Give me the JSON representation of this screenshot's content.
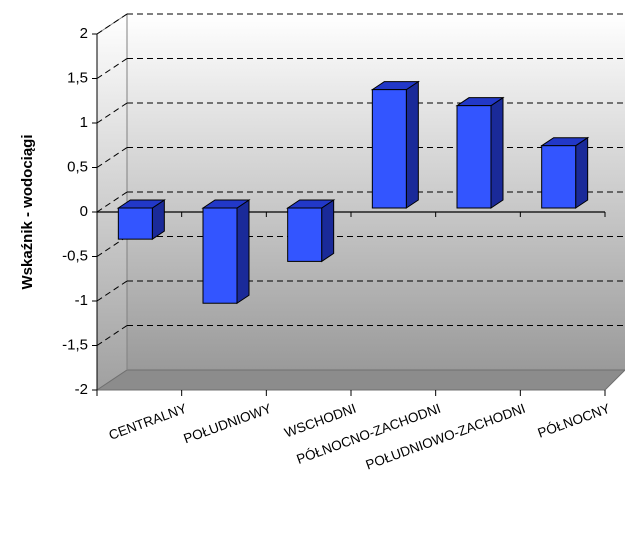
{
  "chart_data": {
    "type": "bar",
    "ylabel": "Wskaźnik - wodociągi",
    "xlabel": "",
    "categories": [
      "CENTRALNY",
      "POŁUDNIOWY",
      "WSCHODNI",
      "PÓŁNOCNO-ZACHODNI",
      "POŁUDNIOWO-ZACHODNI",
      "PÓŁNOCNY"
    ],
    "values": [
      -0.35,
      -1.07,
      -0.6,
      1.33,
      1.15,
      0.7
    ],
    "ylim": [
      -2,
      2
    ],
    "yticks": [
      "-2",
      "-1,5",
      "-1",
      "-0,5",
      "0",
      "0,5",
      "1",
      "1,5",
      "2"
    ],
    "grid": true,
    "legend": "none",
    "colors": {
      "bar_front": "#3355ff",
      "bar_side": "#1a2a99",
      "bar_top": "#2238c8",
      "floor": "#888888",
      "wall_top": "#ffffff",
      "wall_bottom": "#9a9a9a"
    }
  }
}
